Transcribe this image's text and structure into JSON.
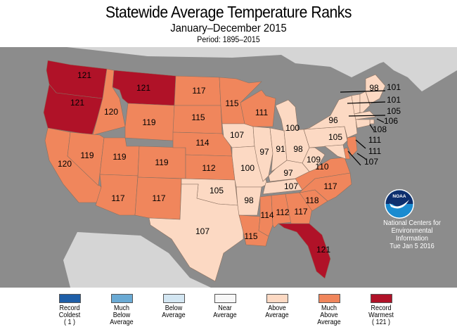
{
  "title": "Statewide Average Temperature Ranks",
  "subtitle": "January–December 2015",
  "period": "Period: 1895–2015",
  "colors": {
    "record_coldest": "#1f5fa8",
    "much_below": "#6aaad4",
    "below": "#d3e6f2",
    "near": "#f7f7f7",
    "above": "#fcd9c3",
    "much_above": "#f0865c",
    "record_warmest": "#b01228",
    "ocean": "#8c8c8c",
    "land_other": "#d5d5d5"
  },
  "legend": [
    {
      "key": "record_coldest",
      "label": "Record\nColdest\n( 1 )"
    },
    {
      "key": "much_below",
      "label": "Much\nBelow\nAverage"
    },
    {
      "key": "below",
      "label": "Below\nAverage"
    },
    {
      "key": "near",
      "label": "Near\nAverage"
    },
    {
      "key": "above",
      "label": "Above\nAverage"
    },
    {
      "key": "much_above",
      "label": "Much\nAbove\nAverage"
    },
    {
      "key": "record_warmest",
      "label": "Record\nWarmest\n( 121 )"
    }
  ],
  "credit": {
    "logo_text": "NOAA",
    "line1": "National Centers for",
    "line2": "Environmental",
    "line3": "Information",
    "date": "Tue Jan  5 2016"
  },
  "states": [
    {
      "name": "WA",
      "rank": "121",
      "category": "record_warmest"
    },
    {
      "name": "OR",
      "rank": "121",
      "category": "record_warmest"
    },
    {
      "name": "MT",
      "rank": "121",
      "category": "record_warmest"
    },
    {
      "name": "ID",
      "rank": "120",
      "category": "much_above"
    },
    {
      "name": "CA",
      "rank": "120",
      "category": "much_above"
    },
    {
      "name": "NV",
      "rank": "119",
      "category": "much_above"
    },
    {
      "name": "UT",
      "rank": "119",
      "category": "much_above"
    },
    {
      "name": "WY",
      "rank": "119",
      "category": "much_above"
    },
    {
      "name": "CO",
      "rank": "119",
      "category": "much_above"
    },
    {
      "name": "AZ",
      "rank": "117",
      "category": "much_above"
    },
    {
      "name": "NM",
      "rank": "117",
      "category": "much_above"
    },
    {
      "name": "ND",
      "rank": "117",
      "category": "much_above"
    },
    {
      "name": "SD",
      "rank": "115",
      "category": "much_above"
    },
    {
      "name": "NE",
      "rank": "114",
      "category": "much_above"
    },
    {
      "name": "KS",
      "rank": "112",
      "category": "much_above"
    },
    {
      "name": "OK",
      "rank": "105",
      "category": "above"
    },
    {
      "name": "TX",
      "rank": "107",
      "category": "above"
    },
    {
      "name": "MN",
      "rank": "115",
      "category": "much_above"
    },
    {
      "name": "IA",
      "rank": "107",
      "category": "above"
    },
    {
      "name": "MO",
      "rank": "100",
      "category": "above"
    },
    {
      "name": "AR",
      "rank": "98",
      "category": "above"
    },
    {
      "name": "LA",
      "rank": "115",
      "category": "much_above"
    },
    {
      "name": "WI",
      "rank": "111",
      "category": "much_above"
    },
    {
      "name": "IL",
      "rank": "97",
      "category": "above"
    },
    {
      "name": "MI",
      "rank": "100",
      "category": "above"
    },
    {
      "name": "IN",
      "rank": "91",
      "category": "above"
    },
    {
      "name": "OH",
      "rank": "98",
      "category": "above"
    },
    {
      "name": "KY",
      "rank": "97",
      "category": "above"
    },
    {
      "name": "TN",
      "rank": "107",
      "category": "above"
    },
    {
      "name": "MS",
      "rank": "114",
      "category": "much_above"
    },
    {
      "name": "AL",
      "rank": "112",
      "category": "much_above"
    },
    {
      "name": "GA",
      "rank": "117",
      "category": "much_above"
    },
    {
      "name": "FL",
      "rank": "121",
      "category": "record_warmest"
    },
    {
      "name": "SC",
      "rank": "118",
      "category": "much_above"
    },
    {
      "name": "NC",
      "rank": "117",
      "category": "much_above"
    },
    {
      "name": "VA",
      "rank": "110",
      "category": "much_above"
    },
    {
      "name": "WV",
      "rank": "109",
      "category": "above"
    },
    {
      "name": "PA",
      "rank": "105",
      "category": "above"
    },
    {
      "name": "NY",
      "rank": "96",
      "category": "above"
    },
    {
      "name": "ME",
      "rank": "98",
      "category": "above"
    },
    {
      "name": "VT",
      "rank": "101",
      "category": "above"
    },
    {
      "name": "NH",
      "rank": "101",
      "category": "above"
    },
    {
      "name": "MA",
      "rank": "105",
      "category": "above"
    },
    {
      "name": "RI",
      "rank": "106",
      "category": "above"
    },
    {
      "name": "CT",
      "rank": "108",
      "category": "above"
    },
    {
      "name": "NJ",
      "rank": "111",
      "category": "much_above"
    },
    {
      "name": "DE",
      "rank": "111",
      "category": "much_above"
    },
    {
      "name": "MD",
      "rank": "107",
      "category": "above"
    }
  ]
}
